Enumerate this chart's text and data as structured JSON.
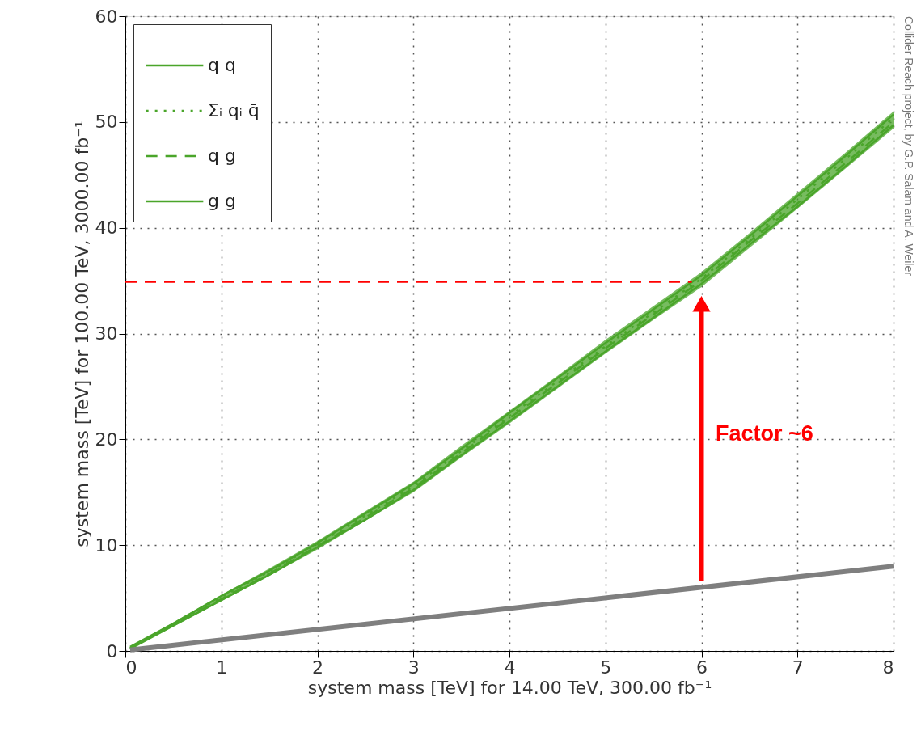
{
  "chart_data": {
    "type": "line",
    "xlabel": "system mass [TeV] for 14.00 TeV, 300.00 fb⁻¹",
    "ylabel": "system mass [TeV] for 100.00 TeV, 3000.00 fb⁻¹",
    "xlim": [
      0,
      8
    ],
    "xticks": [
      0,
      1,
      2,
      3,
      4,
      5,
      6,
      7,
      8
    ],
    "ylim": [
      0,
      60
    ],
    "yticks": [
      0,
      10,
      20,
      30,
      40,
      50,
      60
    ],
    "grid": true,
    "legend": "top left",
    "x": [
      0.05,
      0.5,
      1,
      1.5,
      2,
      2.5,
      3,
      3.5,
      4,
      4.5,
      5,
      5.5,
      6,
      6.5,
      7,
      7.5,
      8
    ],
    "series": [
      {
        "name": "q q",
        "color": "#4aa52a",
        "line_style": "solid",
        "values": [
          0.4,
          2.6,
          5.2,
          7.6,
          10.2,
          13.0,
          15.8,
          19.1,
          22.5,
          25.8,
          29.1,
          32.3,
          35.5,
          39.2,
          43.0,
          46.8,
          50.7
        ],
        "lower": [
          0.2,
          2.3,
          4.7,
          7.1,
          9.6,
          12.3,
          15.0,
          18.3,
          21.5,
          24.8,
          28.1,
          31.3,
          34.4,
          38.1,
          41.8,
          45.6,
          49.4
        ],
        "upper": [
          0.4,
          2.7,
          5.3,
          7.8,
          10.4,
          13.2,
          16.0,
          19.4,
          22.7,
          26.0,
          29.4,
          32.6,
          35.8,
          39.5,
          43.3,
          47.1,
          51.0
        ]
      },
      {
        "name": "Σᵢ qᵢ q̄",
        "color": "#4aa52a",
        "line_style": "dotted",
        "values": [
          0.3,
          2.5,
          5.1,
          7.5,
          10.1,
          12.8,
          15.6,
          18.9,
          22.2,
          25.5,
          28.8,
          32.0,
          35.2,
          38.9,
          42.7,
          46.5,
          50.4
        ]
      },
      {
        "name": "q g",
        "color": "#4aa52a",
        "line_style": "dashed",
        "values": [
          0.3,
          2.5,
          4.9,
          7.3,
          9.9,
          12.6,
          15.4,
          18.7,
          22.0,
          25.3,
          28.6,
          31.8,
          35.0,
          38.7,
          42.3,
          46.1,
          50.0
        ]
      },
      {
        "name": "g g",
        "color": "#4aa52a",
        "line_style": "solid",
        "values": [
          0.2,
          2.4,
          4.8,
          7.2,
          9.8,
          12.4,
          15.2,
          18.5,
          21.7,
          25.0,
          28.3,
          31.5,
          34.7,
          38.4,
          42.0,
          45.8,
          49.7
        ]
      },
      {
        "color": "#7f7f7f",
        "line_style": "solid",
        "x": [
          0.05,
          8
        ],
        "values": [
          0.1,
          8.0
        ]
      },
      {
        "color": "#ff0000",
        "line_style": "dashed",
        "x": [
          0,
          5.9
        ],
        "values": [
          34.9,
          34.9
        ]
      }
    ],
    "annotations": [
      "Factor ~6",
      "Collider Reach project, by G.P. Salam and A. Weiler"
    ]
  }
}
